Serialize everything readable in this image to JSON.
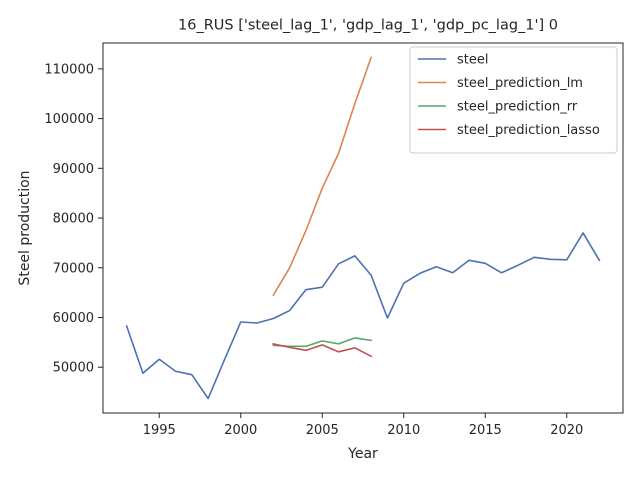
{
  "chart_data": {
    "type": "line",
    "title": "16_RUS ['steel_lag_1', 'gdp_lag_1', 'gdp_pc_lag_1'] 0",
    "xlabel": "Year",
    "ylabel": "Steel production",
    "xlim": [
      1991.55,
      2023.45
    ],
    "ylim": [
      40800,
      115200
    ],
    "xticks": [
      1995,
      2000,
      2005,
      2010,
      2015,
      2020
    ],
    "yticks": [
      50000,
      60000,
      70000,
      80000,
      90000,
      100000,
      110000
    ],
    "legend_position": "top-right",
    "grid": false,
    "series": [
      {
        "name": "steel",
        "color": "#4c72b0",
        "x": [
          1993,
          1994,
          1995,
          1996,
          1997,
          1998,
          1999,
          2000,
          2001,
          2002,
          2003,
          2004,
          2005,
          2006,
          2007,
          2008,
          2009,
          2010,
          2011,
          2012,
          2013,
          2014,
          2015,
          2016,
          2017,
          2018,
          2019,
          2020,
          2021,
          2022
        ],
        "y": [
          58300,
          48800,
          51600,
          49200,
          48500,
          43700,
          51500,
          59100,
          58900,
          59800,
          61400,
          65600,
          66100,
          70800,
          72400,
          68500,
          59900,
          66900,
          68900,
          70200,
          69000,
          71500,
          70900,
          69000,
          70500,
          72100,
          71700,
          71600,
          77000,
          71500
        ]
      },
      {
        "name": "steel_prediction_lm",
        "color": "#dd8452",
        "x": [
          2002,
          2003,
          2004,
          2005,
          2006,
          2007,
          2008
        ],
        "y": [
          64500,
          70000,
          77500,
          86000,
          93000,
          103000,
          112300
        ]
      },
      {
        "name": "steel_prediction_rr",
        "color": "#55a868",
        "x": [
          2002,
          2003,
          2004,
          2005,
          2006,
          2007,
          2008
        ],
        "y": [
          54400,
          54200,
          54200,
          55300,
          54700,
          55900,
          55400
        ]
      },
      {
        "name": "steel_prediction_lasso",
        "color": "#c44e52",
        "x": [
          2002,
          2003,
          2004,
          2005,
          2006,
          2007,
          2008
        ],
        "y": [
          54700,
          54000,
          53400,
          54500,
          53100,
          53900,
          52200
        ]
      }
    ]
  }
}
